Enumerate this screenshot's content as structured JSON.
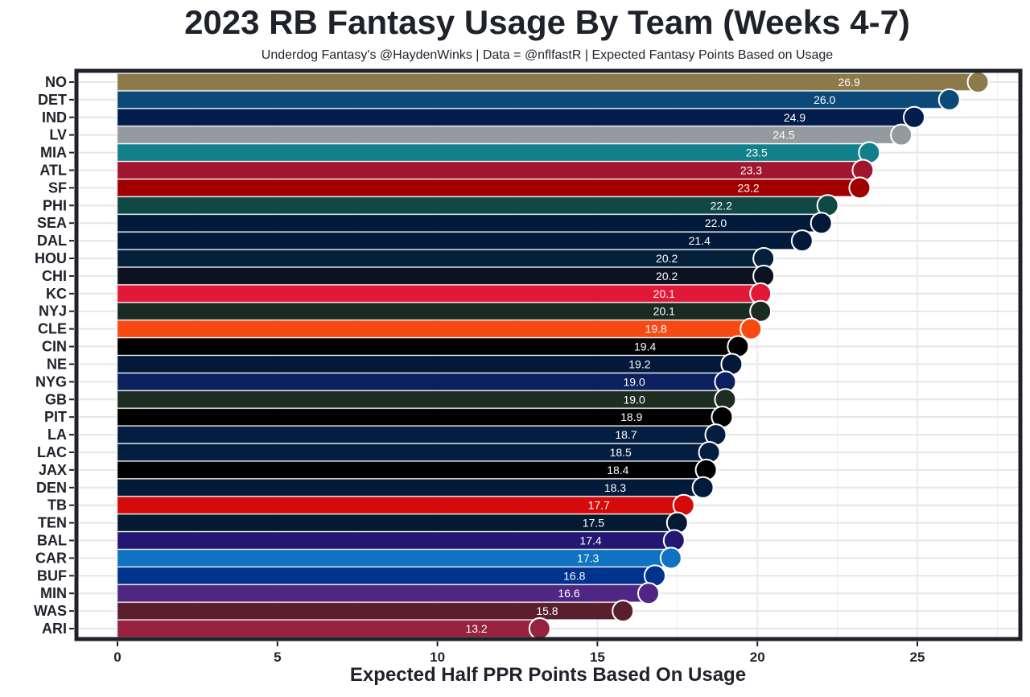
{
  "chart_data": {
    "type": "bar",
    "orientation": "horizontal",
    "title": "2023 RB Fantasy Usage By Team (Weeks 4-7)",
    "subtitle": "Underdog Fantasy's @HaydenWinks | Data = @nflfastR | Expected Fantasy Points Based on Usage",
    "xlabel": "Expected Half PPR Points Based On Usage",
    "ylabel": "",
    "xlim": [
      0,
      27.5
    ],
    "xticks": [
      0,
      5,
      10,
      15,
      20,
      25
    ],
    "grid": true,
    "categories": [
      "NO",
      "DET",
      "IND",
      "LV",
      "MIA",
      "ATL",
      "SF",
      "PHI",
      "SEA",
      "DAL",
      "HOU",
      "CHI",
      "KC",
      "NYJ",
      "CLE",
      "CIN",
      "NE",
      "NYG",
      "GB",
      "PIT",
      "LA",
      "LAC",
      "JAX",
      "DEN",
      "TB",
      "TEN",
      "BAL",
      "CAR",
      "BUF",
      "MIN",
      "WAS",
      "ARI"
    ],
    "values": [
      26.9,
      26.0,
      24.9,
      24.5,
      23.5,
      23.3,
      23.2,
      22.2,
      22.0,
      21.4,
      20.2,
      20.2,
      20.1,
      20.1,
      19.8,
      19.4,
      19.2,
      19.0,
      19.0,
      18.9,
      18.7,
      18.5,
      18.4,
      18.3,
      17.7,
      17.5,
      17.4,
      17.3,
      16.8,
      16.6,
      15.8,
      13.2
    ],
    "colors": [
      "#8c7a4a",
      "#0b4a78",
      "#021d4b",
      "#949b9e",
      "#12808a",
      "#a0162f",
      "#a10000",
      "#0f4845",
      "#021a3a",
      "#021a3a",
      "#04203b",
      "#0c1222",
      "#e21838",
      "#1a2b24",
      "#f74a13",
      "#000000",
      "#04183a",
      "#0c1f5f",
      "#1d2d22",
      "#000000",
      "#041e42",
      "#041e42",
      "#000000",
      "#021b3a",
      "#d50a0a",
      "#041a33",
      "#241773",
      "#0f73c2",
      "#00338d",
      "#4f2683",
      "#5a1f2c",
      "#97233f"
    ]
  }
}
